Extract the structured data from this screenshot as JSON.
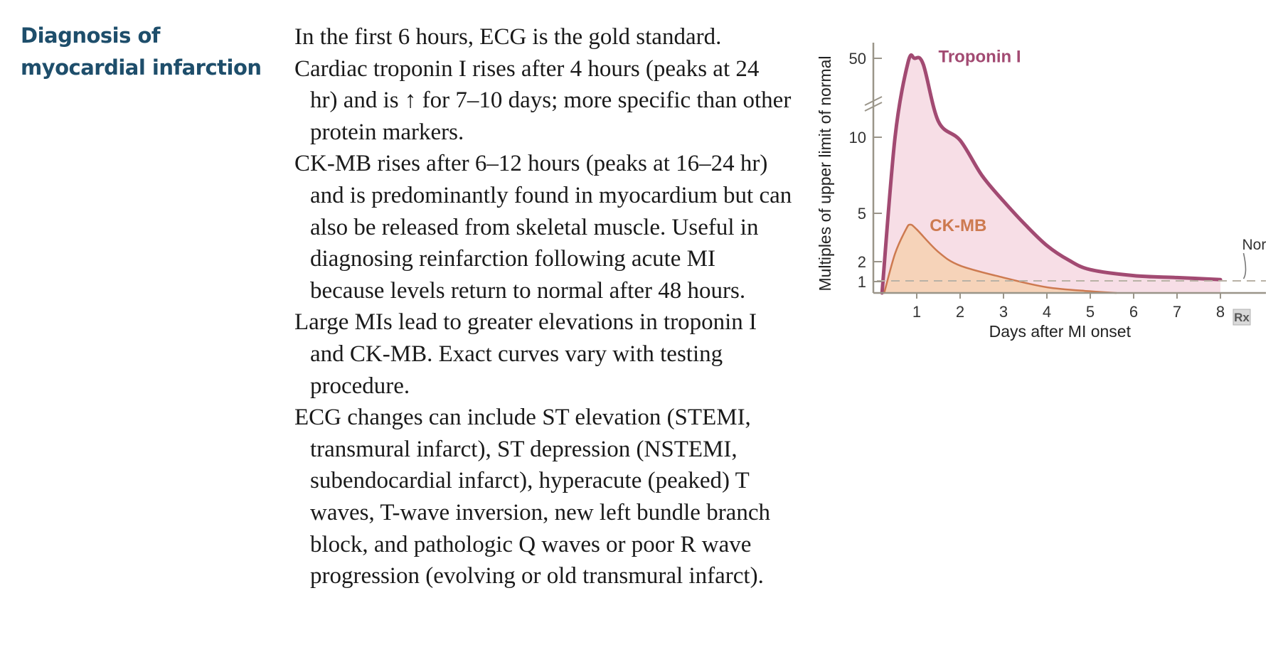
{
  "heading": "Diagnosis of myocardial infarction",
  "paragraphs": [
    "In the first 6 hours, ECG is the gold standard.",
    "Cardiac troponin I rises after 4 hours (peaks at 24 hr) and is ↑ for 7–10 days; more specific than other protein markers.",
    "CK-MB rises after 6–12 hours (peaks at 16–24 hr) and is predominantly found in myocardium but can also be released from skeletal muscle. Useful in diagnosing reinfarction following acute MI because levels return to normal after 48 hours.",
    "Large MIs lead to greater elevations in troponin I and CK-MB. Exact curves vary with testing procedure.",
    "ECG changes can include ST elevation (STEMI, transmural infarct), ST depression (NSTEMI, subendocardial infarct), hyperacute (peaked) T waves, T-wave inversion, new left bundle branch block, and pathologic Q waves or poor R wave progression (evolving or old transmural infarct)."
  ],
  "chart_data": {
    "type": "area",
    "xlabel": "Days after MI onset",
    "ylabel": "Multiples of upper limit of normal",
    "x_ticks": [
      1,
      2,
      3,
      4,
      5,
      6,
      7,
      8
    ],
    "y_ticks": [
      1,
      2,
      5,
      10,
      50
    ],
    "y_axis_break": "between 10 and 50",
    "reference_line": {
      "label": "Normal",
      "y": 1
    },
    "series": [
      {
        "name": "Troponin I",
        "color": "#a24a72",
        "fill": "#f6d8e2",
        "points": [
          [
            0.2,
            0
          ],
          [
            0.5,
            10
          ],
          [
            0.8,
            48
          ],
          [
            0.95,
            50
          ],
          [
            1.15,
            47
          ],
          [
            1.5,
            18
          ],
          [
            2,
            9.8
          ],
          [
            2.5,
            7.5
          ],
          [
            3,
            5.8
          ],
          [
            3.5,
            4.3
          ],
          [
            4,
            3
          ],
          [
            4.5,
            2.1
          ],
          [
            5,
            1.6
          ],
          [
            6,
            1.3
          ],
          [
            7,
            1.2
          ],
          [
            8,
            1.1
          ]
        ]
      },
      {
        "name": "CK-MB",
        "color": "#cd7a50",
        "fill": "#f5cfae",
        "points": [
          [
            0.25,
            0
          ],
          [
            0.5,
            2.5
          ],
          [
            0.75,
            4
          ],
          [
            0.85,
            4.3
          ],
          [
            1,
            4
          ],
          [
            1.5,
            2.6
          ],
          [
            2,
            1.8
          ],
          [
            3,
            1.2
          ],
          [
            4,
            0.5
          ],
          [
            5,
            0.15
          ],
          [
            5.6,
            0
          ]
        ]
      }
    ],
    "logo": "Rx"
  }
}
